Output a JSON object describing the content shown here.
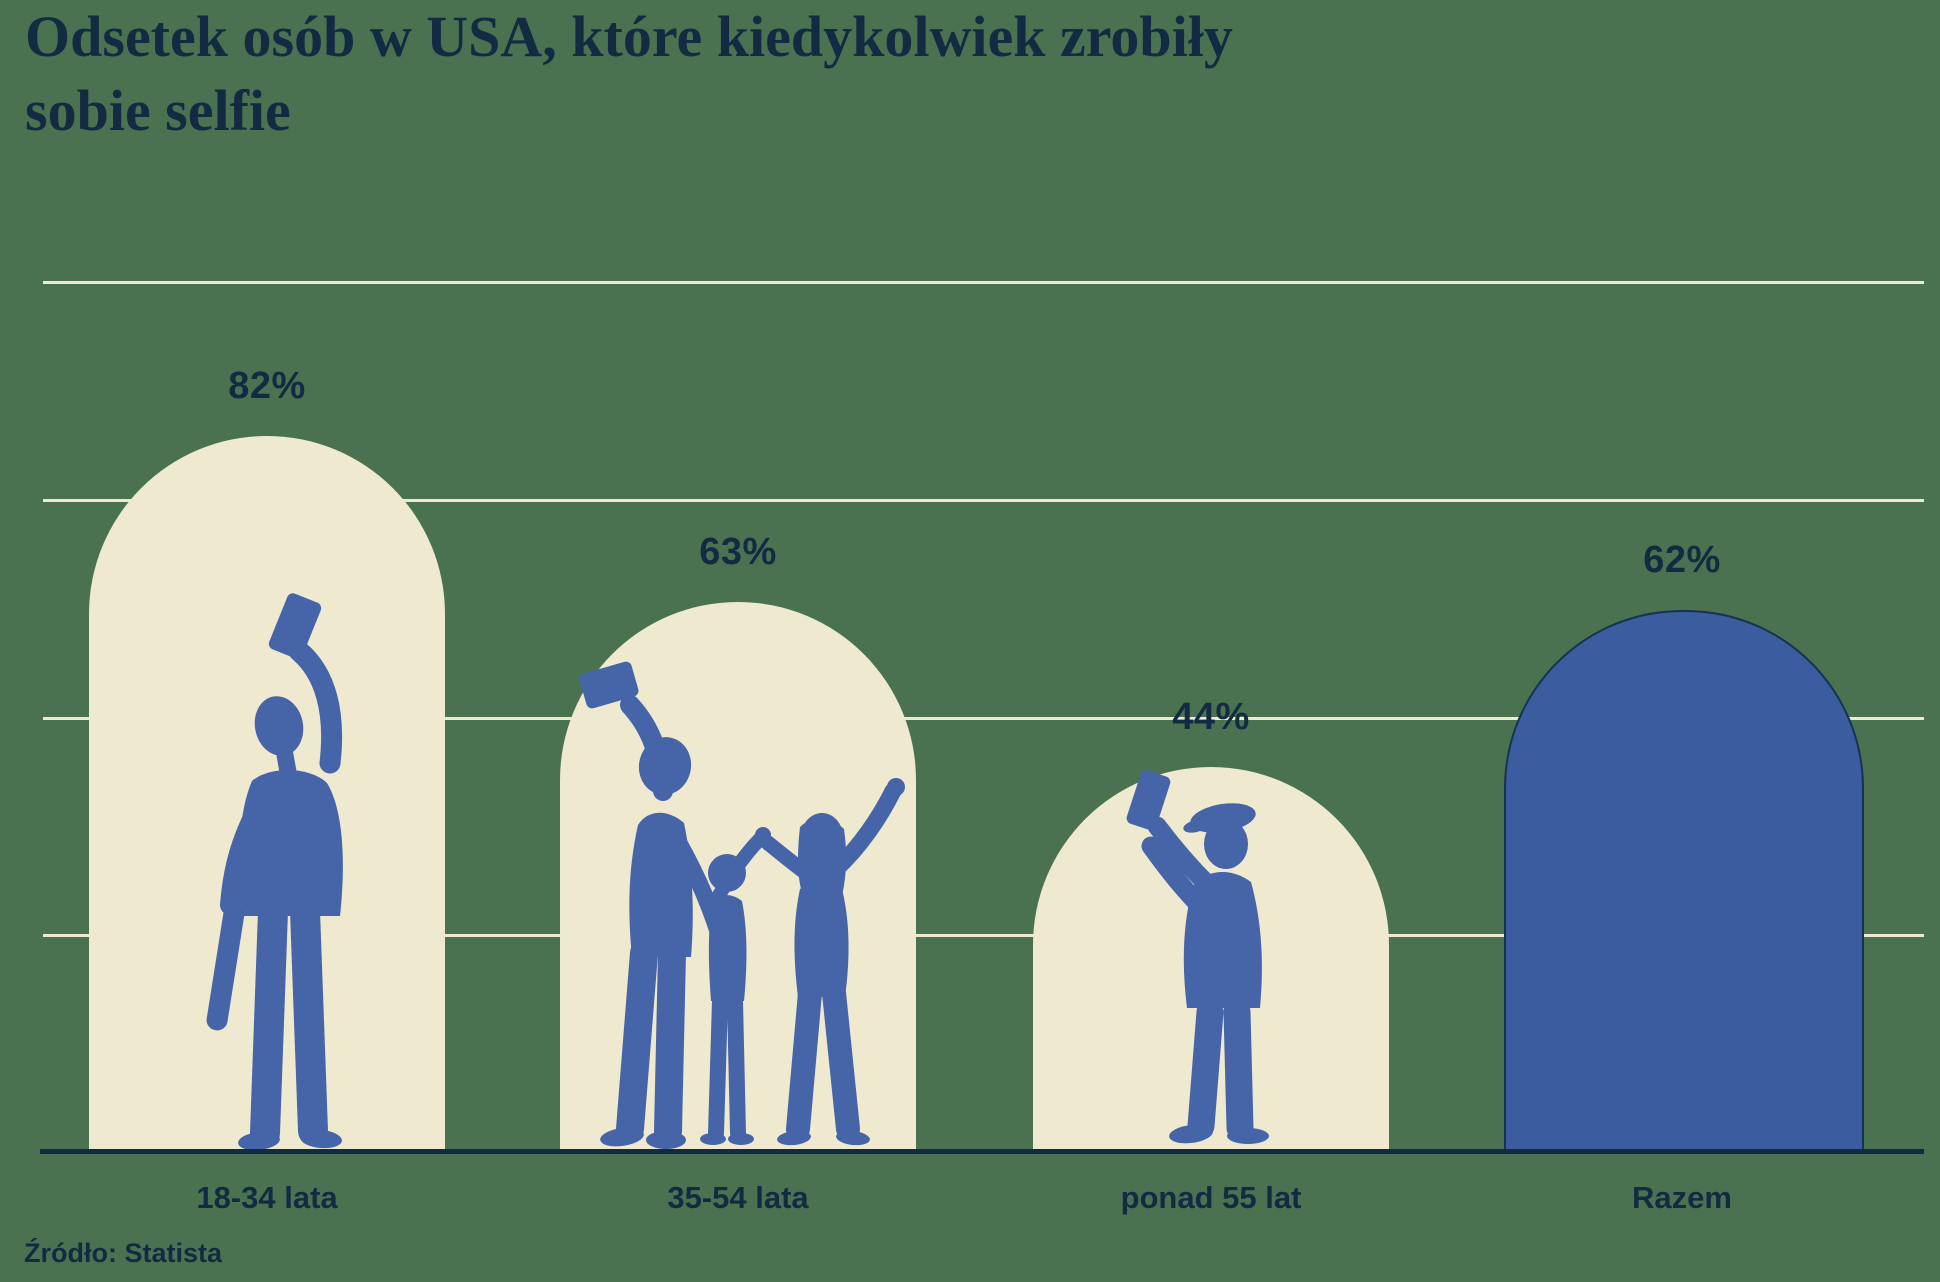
{
  "title": {
    "line1": "Odsetek osób w USA, które kiedykolwiek zrobiły",
    "line2": "sobie selfie"
  },
  "source": "Źródło: Statista",
  "colors": {
    "background_green": "#4A7251",
    "bar_cream": "#EFE9D0",
    "bar_blue": "#3B5C9E",
    "silhouette_blue": "#4565A8",
    "text_navy": "#132B42",
    "gridline_cream": "#EFE9D0",
    "baseline_navy": "#132B42",
    "arch_outline": "#16334F"
  },
  "chart_data": {
    "type": "bar",
    "title": "Odsetek osób w USA, które kiedykolwiek zrobiły sobie selfie",
    "categories": [
      "18-34 lata",
      "35-54 lata",
      "ponad 55 lat",
      "Razem"
    ],
    "values": [
      82,
      63,
      44,
      62
    ],
    "value_labels": [
      "82%",
      "63%",
      "44%",
      "62%"
    ],
    "unit": "%",
    "ylim": [
      0,
      100
    ],
    "gridlines_pct": [
      25,
      50,
      75,
      100
    ],
    "y_axis_labels_visible": false,
    "bar_style": "arch with semicircular top, illustrated silhouettes inside",
    "highlight_category": "Razem",
    "source": "Źródło: Statista"
  },
  "bars": [
    {
      "category": "18-34 lata",
      "value": 82,
      "value_label": "82%",
      "fill": "#EFE9D0",
      "outlined": false,
      "silhouette": "young-man-taking-selfie-with-skateboard"
    },
    {
      "category": "35-54 lata",
      "value": 63,
      "value_label": "63%",
      "fill": "#EFE9D0",
      "outlined": false,
      "silhouette": "family-of-three-taking-selfie"
    },
    {
      "category": "ponad 55 lat",
      "value": 44,
      "value_label": "44%",
      "fill": "#EFE9D0",
      "outlined": false,
      "silhouette": "older-man-in-flat-cap-taking-selfie"
    },
    {
      "category": "Razem",
      "value": 62,
      "value_label": "62%",
      "fill": "#3B5C9E",
      "outlined": true,
      "silhouette": null
    }
  ]
}
